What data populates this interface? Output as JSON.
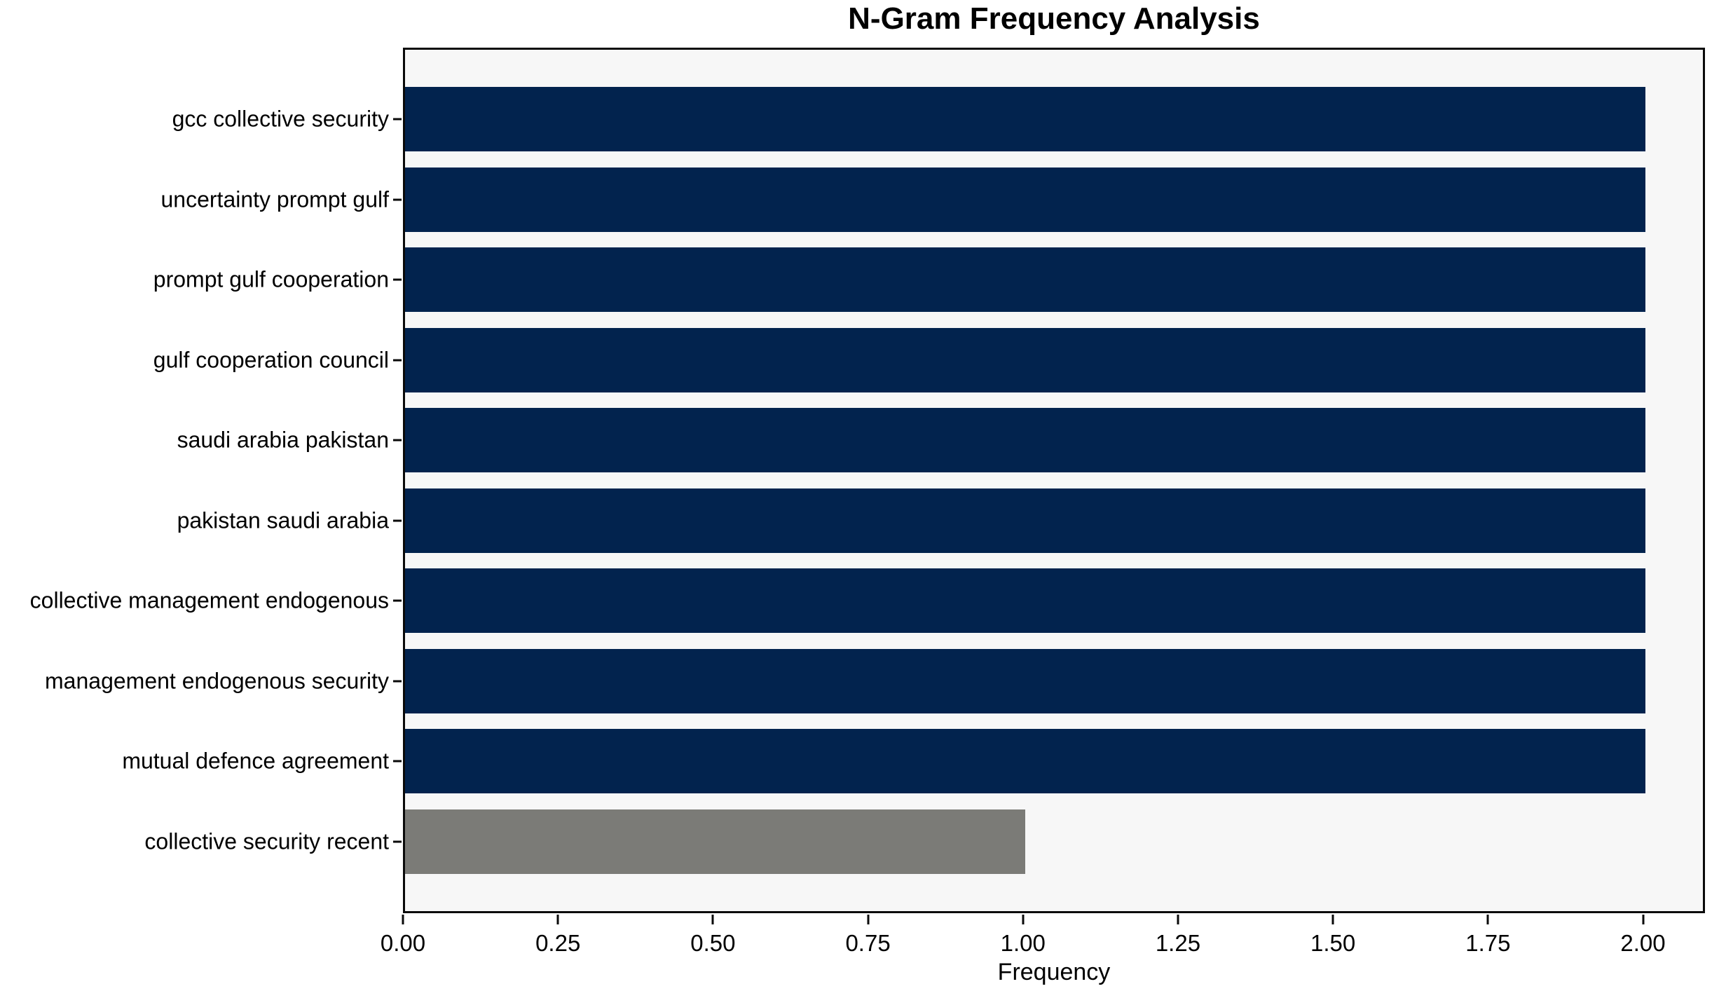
{
  "chart_data": {
    "type": "bar",
    "orientation": "horizontal",
    "title": "N-Gram Frequency Analysis",
    "xlabel": "Frequency",
    "ylabel": "",
    "categories": [
      "gcc collective security",
      "uncertainty prompt gulf",
      "prompt gulf cooperation",
      "gulf cooperation council",
      "saudi arabia pakistan",
      "pakistan saudi arabia",
      "collective management endogenous",
      "management endogenous security",
      "mutual defence agreement",
      "collective security recent"
    ],
    "values": [
      2,
      2,
      2,
      2,
      2,
      2,
      2,
      2,
      2,
      1
    ],
    "bar_colors": [
      "#02234e",
      "#02234e",
      "#02234e",
      "#02234e",
      "#02234e",
      "#02234e",
      "#02234e",
      "#02234e",
      "#02234e",
      "#7b7b77"
    ],
    "xlim": [
      0,
      2.1
    ],
    "xticks": {
      "values": [
        0,
        0.25,
        0.5,
        0.75,
        1.0,
        1.25,
        1.5,
        1.75,
        2.0
      ],
      "labels": [
        "0.00",
        "0.25",
        "0.50",
        "0.75",
        "1.00",
        "1.25",
        "1.50",
        "1.75",
        "2.00"
      ]
    },
    "grid": false,
    "legend": null,
    "plot_background": "#f7f7f7",
    "figure_background": "#ffffff",
    "accent_colors": {
      "primary_bar": "#02234e",
      "muted_bar": "#7b7b77"
    }
  }
}
